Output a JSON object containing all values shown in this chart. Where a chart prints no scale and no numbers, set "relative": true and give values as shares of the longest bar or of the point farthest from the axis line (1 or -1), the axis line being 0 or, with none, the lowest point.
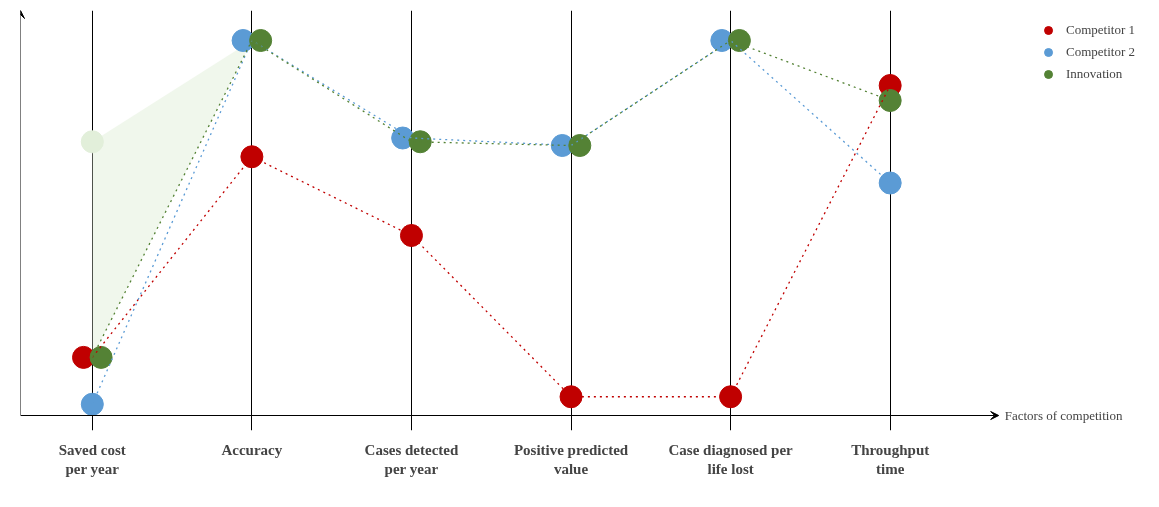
{
  "chart_data": {
    "type": "line",
    "relative": true,
    "xlabel": "Factors of competition",
    "categories": [
      "Saved cost\nper year",
      "Accuracy",
      "Cases detected\nper year",
      "Positive predicted\nvalue",
      "Case diagnosed per\nlife lost",
      "Throughput\ntime"
    ],
    "series": [
      {
        "color": "#e2efda",
        "type": "scatter",
        "values": [
          0.73,
          null,
          null,
          null,
          null,
          null
        ],
        "lower": [
          0.155,
          1,
          null,
          null,
          null,
          null
        ],
        "upper": [
          0.73,
          1,
          null,
          null,
          null,
          null
        ]
      },
      {
        "name": "Competitor 1",
        "color": "#c00000",
        "values": [
          0.155,
          0.69,
          0.48,
          0.05,
          0.05,
          0.88
        ]
      },
      {
        "name": "Competitor 2",
        "color": "#5b9bd5",
        "values": [
          0.03,
          1,
          0.74,
          0.72,
          1,
          0.62
        ]
      },
      {
        "name": "Innovation",
        "color": "#548235",
        "values": [
          0.155,
          1,
          0.73,
          0.72,
          1,
          0.84
        ]
      }
    ],
    "grid": "x",
    "legend": "top right",
    "marker": "circle",
    "line_style": "dotted"
  }
}
